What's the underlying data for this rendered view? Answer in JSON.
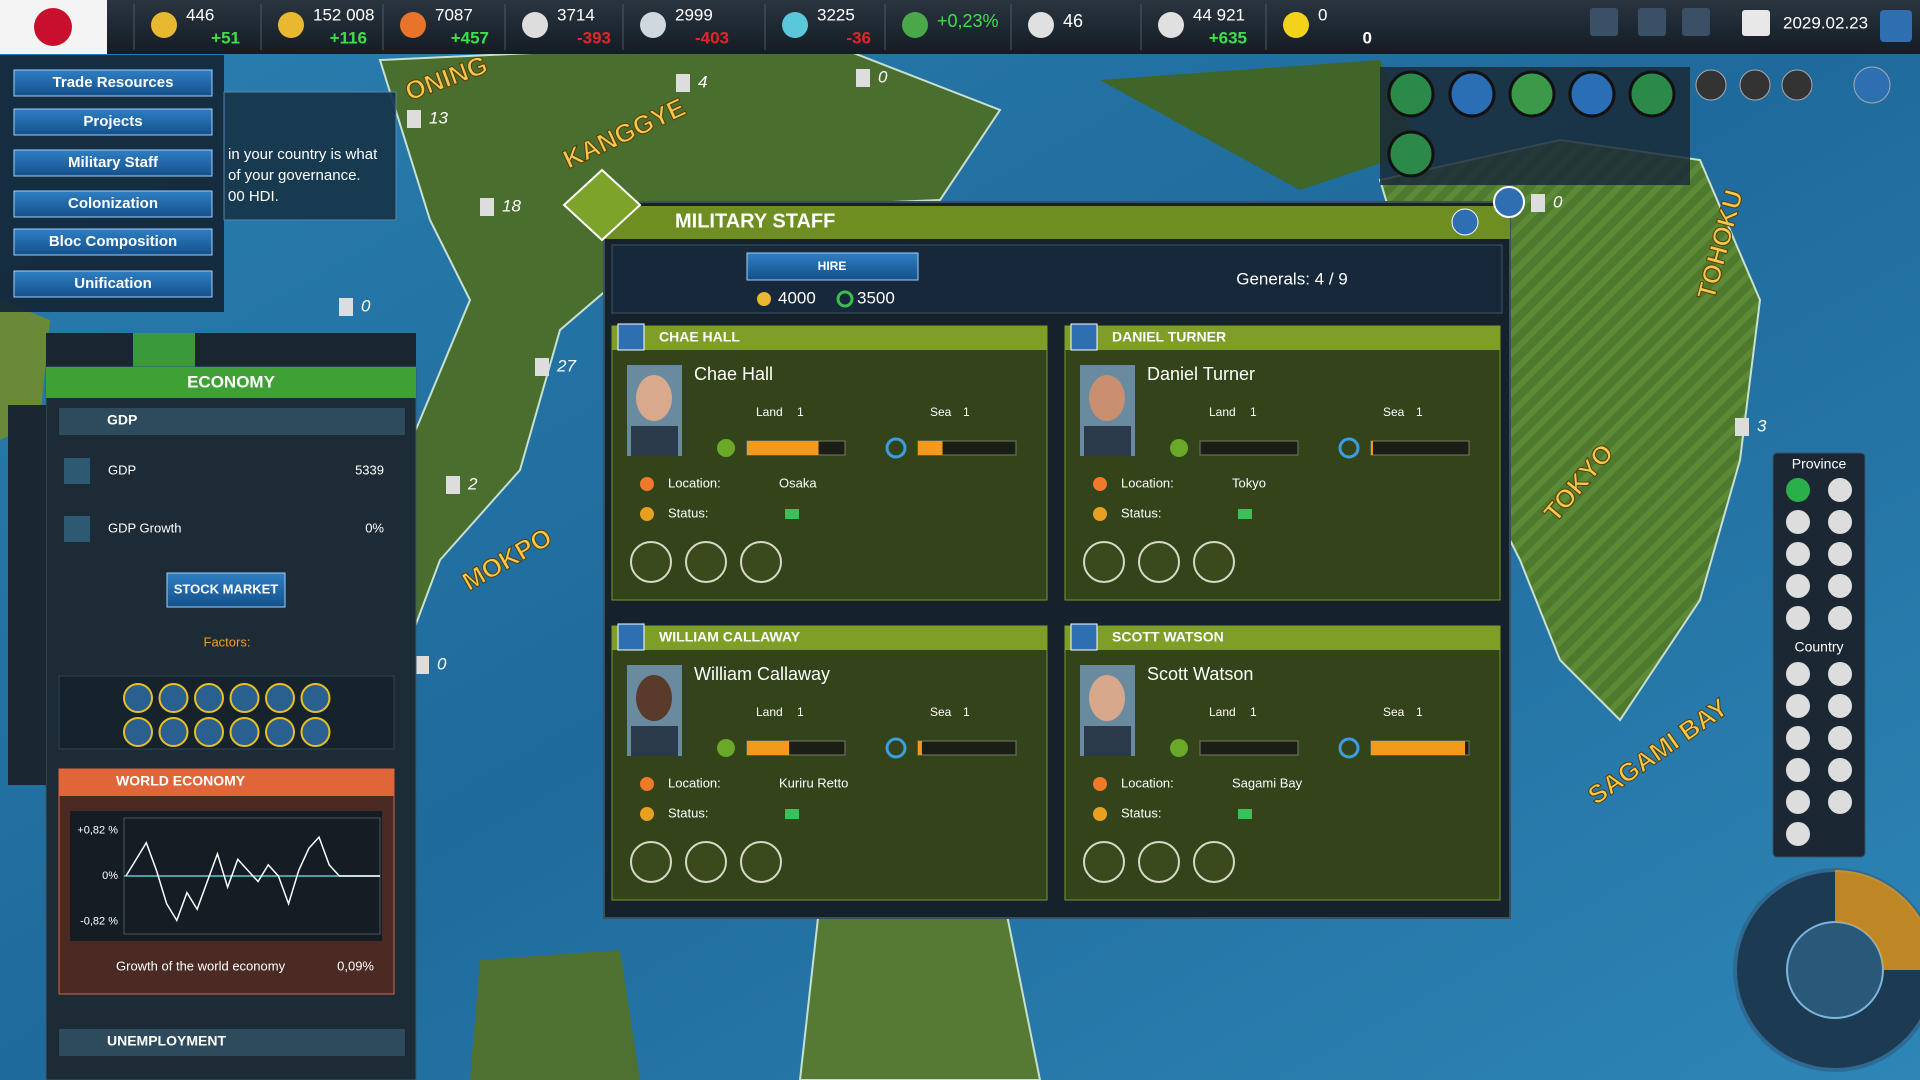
{
  "top_bar": {
    "resources": [
      {
        "value": "446",
        "delta": "+51"
      },
      {
        "value": "152 008",
        "delta": "+116"
      },
      {
        "value": "7087",
        "delta": "+457"
      },
      {
        "value": "3714",
        "delta": "-393"
      },
      {
        "value": "2999",
        "delta": "-403"
      },
      {
        "value": "3225",
        "delta": "-36"
      },
      {
        "value": "+0,23%"
      },
      {
        "value": "46"
      },
      {
        "value": "44 921",
        "delta": "+635"
      },
      {
        "value": "0",
        "delta": "0"
      }
    ],
    "date": "2029.02.23"
  },
  "left_menu": [
    "Trade Resources",
    "Projects",
    "Military Staff",
    "Colonization",
    "Bloc Composition",
    "Unification"
  ],
  "tooltip": [
    "in your country is what",
    "of your governance.",
    "00 HDI."
  ],
  "map": {
    "labels": [
      "ONING",
      "KANGGYE",
      "MOKPO",
      "TOKYO",
      "SAGAMI BAY",
      "TOHOKU"
    ],
    "unit_counts": [
      "13",
      "18",
      "4",
      "0",
      "0",
      "27",
      "2",
      "0",
      "3",
      "0"
    ]
  },
  "economy": {
    "title": "ECONOMY",
    "gdp_section": "GDP",
    "rows": [
      [
        "GDP",
        "5339"
      ],
      [
        "GDP Growth",
        "0%"
      ]
    ],
    "stock_market": "STOCK MARKET",
    "factors": "Factors:",
    "world_economy": {
      "title": "WORLD ECONOMY",
      "chart": {
        "type": "line",
        "values": [
          0,
          0.3,
          0.6,
          0.1,
          -0.5,
          -0.8,
          -0.3,
          -0.6,
          -0.1,
          0.4,
          -0.2,
          0.3,
          0.1,
          -0.1,
          0.2,
          0,
          -0.5,
          0.1,
          0.5,
          0.7,
          0.2,
          0,
          0,
          0,
          0,
          0
        ],
        "ylim": [
          -0.82,
          0.82
        ],
        "yticks": [
          {
            "value": 0.82,
            "label": "+0,82 %"
          },
          {
            "value": 0,
            "label": "0%"
          },
          {
            "value": -0.82,
            "label": "-0,82 %"
          }
        ],
        "color": "#ffffff"
      },
      "footer_label": "Growth of the world economy",
      "footer_value": "0,09%"
    },
    "unemployment": "UNEMPLOYMENT"
  },
  "military_staff": {
    "title": "MILITARY STAFF",
    "hire": "HIRE",
    "cost_money": "4000",
    "cost_other": "3500",
    "generals": "Generals: 4 / 9",
    "labels": {
      "land": "Land",
      "sea": "Sea",
      "location": "Location:",
      "status": "Status:"
    },
    "cards": [
      {
        "header": "CHAE HALL",
        "name": "Chae Hall",
        "land_level": "1",
        "sea_level": "1",
        "land_progress": 0.73,
        "sea_progress": 0.25,
        "location": "Osaka"
      },
      {
        "header": "DANIEL TURNER",
        "name": "Daniel Turner",
        "land_level": "1",
        "sea_level": "1",
        "land_progress": 0,
        "sea_progress": 0.02,
        "location": "Tokyo"
      },
      {
        "header": "WILLIAM CALLAWAY",
        "name": "William Callaway",
        "land_level": "1",
        "sea_level": "1",
        "land_progress": 0.43,
        "sea_progress": 0.04,
        "location": "Kuriru Retto"
      },
      {
        "header": "SCOTT WATSON",
        "name": "Scott Watson",
        "land_level": "1",
        "sea_level": "1",
        "land_progress": 0,
        "sea_progress": 0.96,
        "location": "Sagami Bay"
      }
    ]
  },
  "right_panel": {
    "province": "Province",
    "country": "Country"
  }
}
